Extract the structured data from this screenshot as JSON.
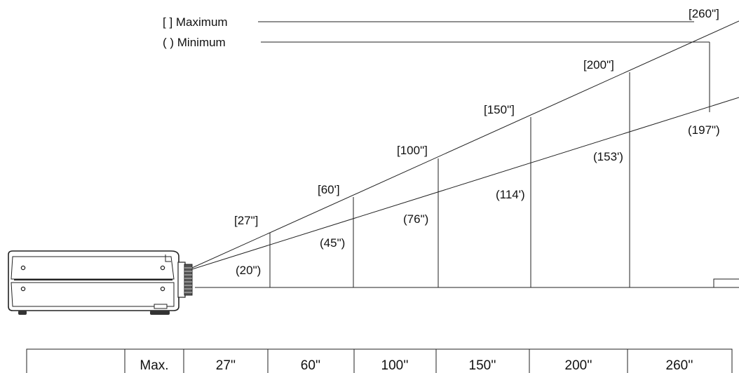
{
  "legend": {
    "max_label": "[  ] Maximum",
    "min_label": "(  ) Minimum"
  },
  "screens": [
    {
      "max": "[27\"]",
      "min": "(20\")"
    },
    {
      "max": "[60']",
      "min": "(45\")"
    },
    {
      "max": "[100\"]",
      "min": "(76\")"
    },
    {
      "max": "[150\"]",
      "min": "(114')"
    },
    {
      "max": "[200\"]",
      "min": "(153')"
    },
    {
      "max": "[260\"]",
      "min": "(197\")"
    }
  ],
  "table": {
    "row_label": "Max.",
    "cells": [
      "27''",
      "60''",
      "100''",
      "150''",
      "200''",
      "260''"
    ]
  }
}
